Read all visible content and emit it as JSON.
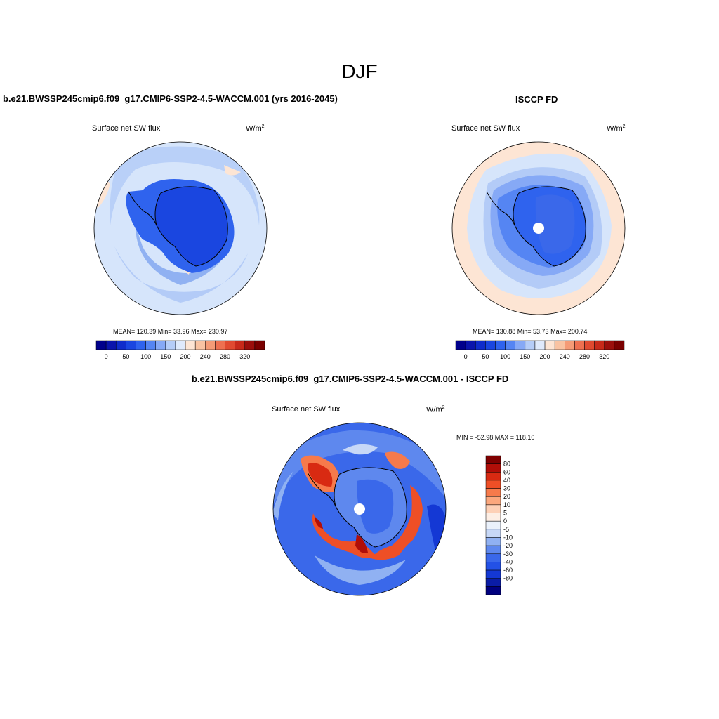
{
  "figure": {
    "title": "DJF"
  },
  "panels": [
    {
      "title": "b.e21.BWSSP245cmip6.f09_g17.CMIP6-SSP2-4.5-WACCM.001 (yrs 2016-2045)",
      "variable": "Surface net SW flux",
      "units": "W/m",
      "units_sup": "2",
      "stats": "MEAN= 120.39  Min=  33.96  Max= 230.97",
      "colorbar": {
        "colors": [
          "#00008b",
          "#0a14ac",
          "#0f2ccb",
          "#1a46e0",
          "#2f63ee",
          "#5585f3",
          "#86a9f6",
          "#b5cdf8",
          "#dfeafc",
          "#fde5d4",
          "#f9c3a2",
          "#f59b76",
          "#ee7050",
          "#e04a30",
          "#c72a1a",
          "#9b0f0c",
          "#7a0000"
        ],
        "ticks": [
          "0",
          "50",
          "100",
          "150",
          "200",
          "240",
          "280",
          "320"
        ]
      }
    },
    {
      "title": "ISCCP FD",
      "variable": "Surface net SW flux",
      "units": "W/m",
      "units_sup": "2",
      "stats": "MEAN= 130.88  Min=  53.73  Max= 200.74",
      "colorbar": {
        "colors": [
          "#00008b",
          "#0a14ac",
          "#0f2ccb",
          "#1a46e0",
          "#2f63ee",
          "#5585f3",
          "#86a9f6",
          "#b5cdf8",
          "#dfeafc",
          "#fde5d4",
          "#f9c3a2",
          "#f59b76",
          "#ee7050",
          "#e04a30",
          "#c72a1a",
          "#9b0f0c",
          "#7a0000"
        ],
        "ticks": [
          "0",
          "50",
          "100",
          "150",
          "200",
          "240",
          "280",
          "320"
        ]
      }
    },
    {
      "title": "b.e21.BWSSP245cmip6.f09_g17.CMIP6-SSP2-4.5-WACCM.001 - ISCCP FD",
      "variable": "Surface net SW flux",
      "units": "W/m",
      "units_sup": "2",
      "stats": "MIN = -52.98 MAX = 118.10",
      "colorbar": {
        "colors": [
          "#7f0000",
          "#b10e08",
          "#d82a12",
          "#ee4f26",
          "#f67a4b",
          "#fba77d",
          "#fdd0b6",
          "#fdeee4",
          "#eaf1fb",
          "#c7d8f7",
          "#90b1f2",
          "#5e88ee",
          "#3a68ea",
          "#2351e6",
          "#1438d4",
          "#0a1ca6",
          "#00007f"
        ],
        "ticks": [
          "80",
          "60",
          "40",
          "30",
          "20",
          "10",
          "5",
          "0",
          "-5",
          "-10",
          "-20",
          "-30",
          "-40",
          "-60",
          "-80"
        ]
      }
    }
  ]
}
